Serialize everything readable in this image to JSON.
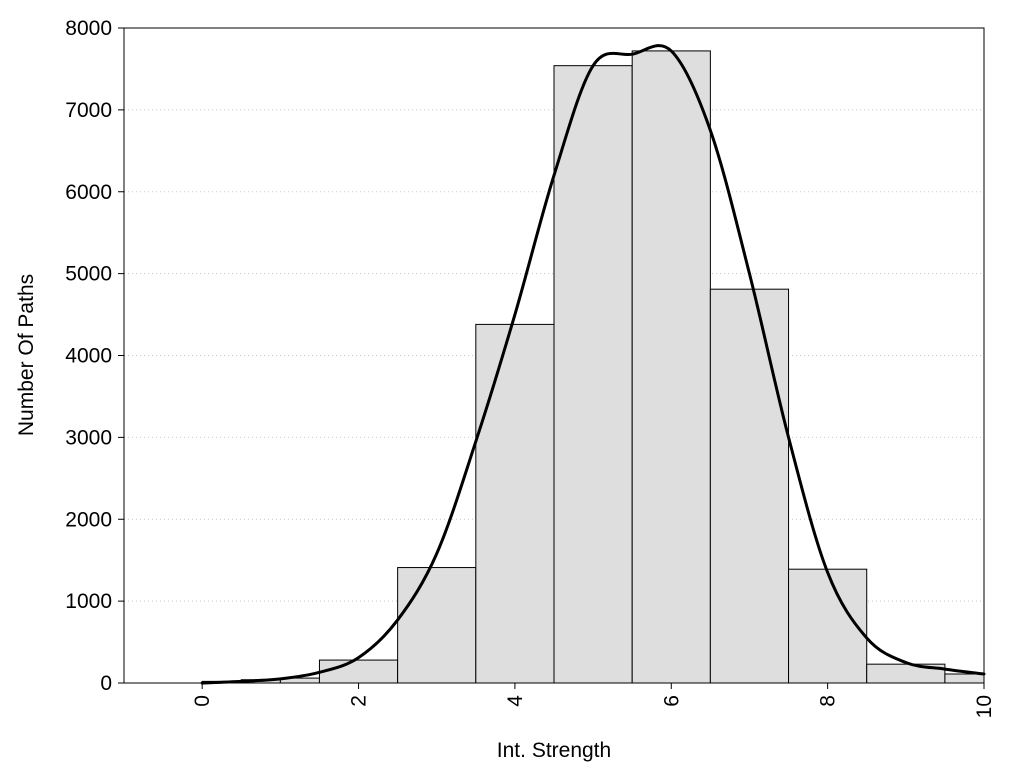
{
  "chart_data": {
    "type": "bar",
    "title": "",
    "xlabel": "Int. Strength",
    "ylabel": "Number Of Paths",
    "xlim": [
      -1,
      10
    ],
    "ylim": [
      0,
      8000
    ],
    "x_ticks": [
      "0",
      "2",
      "4",
      "6",
      "8",
      "10"
    ],
    "x_tick_values": [
      0,
      2,
      4,
      6,
      8,
      10
    ],
    "y_ticks": [
      "0",
      "1000",
      "2000",
      "3000",
      "4000",
      "5000",
      "6000",
      "7000",
      "8000"
    ],
    "y_tick_values": [
      0,
      1000,
      2000,
      3000,
      4000,
      5000,
      6000,
      7000,
      8000
    ],
    "grid": "horizontal dotted",
    "bar_color": "#dedede",
    "bins": [
      {
        "x0": 0.0,
        "x1": 0.5,
        "value": 20
      },
      {
        "x0": 0.5,
        "x1": 1.0,
        "value": 40
      },
      {
        "x0": 1.0,
        "x1": 1.5,
        "value": 60
      },
      {
        "x0": 1.5,
        "x1": 2.5,
        "value": 280
      },
      {
        "x0": 2.5,
        "x1": 3.5,
        "value": 1410
      },
      {
        "x0": 3.5,
        "x1": 4.5,
        "value": 4380
      },
      {
        "x0": 4.5,
        "x1": 5.5,
        "value": 7540
      },
      {
        "x0": 5.5,
        "x1": 6.5,
        "value": 7720
      },
      {
        "x0": 6.5,
        "x1": 7.5,
        "value": 4810
      },
      {
        "x0": 7.5,
        "x1": 8.5,
        "value": 1390
      },
      {
        "x0": 8.5,
        "x1": 9.5,
        "value": 230
      },
      {
        "x0": 9.5,
        "x1": 10.0,
        "value": 110
      }
    ],
    "curve": {
      "x": [
        0,
        0.5,
        1,
        1.5,
        2,
        2.5,
        3,
        3.5,
        4,
        4.5,
        5,
        5.5,
        6,
        6.5,
        7,
        7.5,
        8,
        8.5,
        9,
        9.5,
        10
      ],
      "y": [
        0,
        20,
        50,
        130,
        310,
        770,
        1580,
        2950,
        4500,
        6200,
        7540,
        7680,
        7720,
        6750,
        5000,
        3000,
        1350,
        550,
        250,
        170,
        110
      ]
    }
  }
}
